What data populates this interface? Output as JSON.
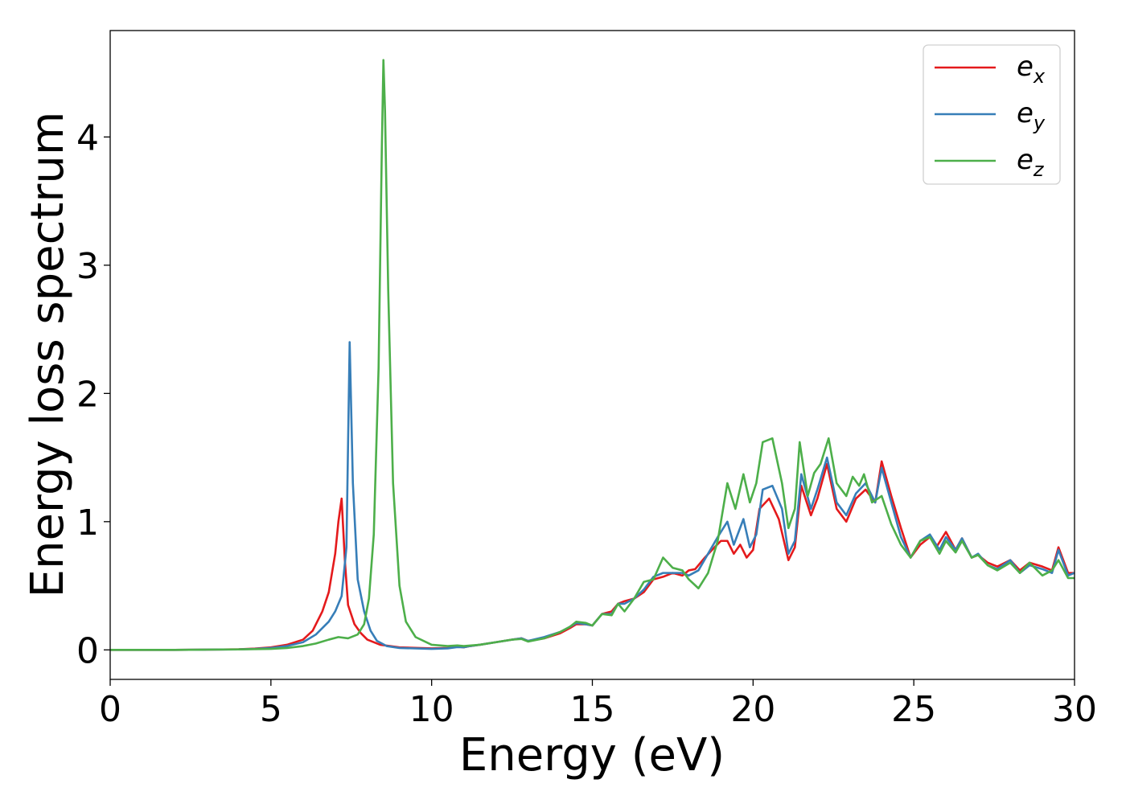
{
  "chart_data": {
    "type": "line",
    "xlabel": "Energy (eV)",
    "ylabel": "Energy loss spectrum",
    "xlim": [
      0,
      30
    ],
    "ylim": [
      -0.23,
      4.83
    ],
    "xticks": [
      0,
      5,
      10,
      15,
      20,
      25,
      30
    ],
    "yticks": [
      0,
      1,
      2,
      3,
      4
    ],
    "grid": false,
    "legend_position": "top-right",
    "series": [
      {
        "name": "e_x",
        "label_base": "e",
        "label_sub": "x",
        "color": "#e41a1c",
        "points": [
          [
            0,
            0
          ],
          [
            2,
            0
          ],
          [
            3,
            0.002
          ],
          [
            4,
            0.005
          ],
          [
            4.5,
            0.01
          ],
          [
            5,
            0.02
          ],
          [
            5.5,
            0.04
          ],
          [
            6,
            0.08
          ],
          [
            6.3,
            0.15
          ],
          [
            6.6,
            0.3
          ],
          [
            6.8,
            0.45
          ],
          [
            7,
            0.75
          ],
          [
            7.1,
            1.0
          ],
          [
            7.2,
            1.18
          ],
          [
            7.3,
            0.7
          ],
          [
            7.4,
            0.35
          ],
          [
            7.6,
            0.2
          ],
          [
            7.8,
            0.13
          ],
          [
            8,
            0.08
          ],
          [
            8.4,
            0.04
          ],
          [
            9,
            0.02
          ],
          [
            10,
            0.012
          ],
          [
            10.5,
            0.015
          ],
          [
            10.8,
            0.025
          ],
          [
            11,
            0.02
          ],
          [
            11.2,
            0.03
          ],
          [
            11.5,
            0.04
          ],
          [
            12,
            0.06
          ],
          [
            12.5,
            0.08
          ],
          [
            12.8,
            0.09
          ],
          [
            13,
            0.07
          ],
          [
            13.5,
            0.09
          ],
          [
            14,
            0.13
          ],
          [
            14.3,
            0.17
          ],
          [
            14.5,
            0.2
          ],
          [
            14.8,
            0.2
          ],
          [
            15,
            0.19
          ],
          [
            15.3,
            0.28
          ],
          [
            15.6,
            0.3
          ],
          [
            15.8,
            0.36
          ],
          [
            16,
            0.38
          ],
          [
            16.3,
            0.4
          ],
          [
            16.6,
            0.45
          ],
          [
            16.9,
            0.55
          ],
          [
            17.2,
            0.57
          ],
          [
            17.5,
            0.6
          ],
          [
            17.8,
            0.58
          ],
          [
            18,
            0.62
          ],
          [
            18.2,
            0.63
          ],
          [
            18.5,
            0.72
          ],
          [
            18.8,
            0.8
          ],
          [
            19,
            0.85
          ],
          [
            19.2,
            0.85
          ],
          [
            19.4,
            0.75
          ],
          [
            19.6,
            0.82
          ],
          [
            19.8,
            0.72
          ],
          [
            20,
            0.78
          ],
          [
            20.2,
            1.1
          ],
          [
            20.5,
            1.18
          ],
          [
            20.8,
            1.02
          ],
          [
            21.1,
            0.7
          ],
          [
            21.3,
            0.8
          ],
          [
            21.5,
            1.28
          ],
          [
            21.8,
            1.05
          ],
          [
            22,
            1.18
          ],
          [
            22.3,
            1.45
          ],
          [
            22.6,
            1.1
          ],
          [
            22.9,
            1.0
          ],
          [
            23.2,
            1.18
          ],
          [
            23.5,
            1.25
          ],
          [
            23.8,
            1.15
          ],
          [
            24,
            1.47
          ],
          [
            24.3,
            1.2
          ],
          [
            24.6,
            0.95
          ],
          [
            24.9,
            0.72
          ],
          [
            25.2,
            0.82
          ],
          [
            25.5,
            0.88
          ],
          [
            25.7,
            0.8
          ],
          [
            26,
            0.92
          ],
          [
            26.3,
            0.78
          ],
          [
            26.5,
            0.87
          ],
          [
            26.8,
            0.72
          ],
          [
            27,
            0.74
          ],
          [
            27.3,
            0.68
          ],
          [
            27.6,
            0.65
          ],
          [
            28,
            0.7
          ],
          [
            28.3,
            0.62
          ],
          [
            28.6,
            0.68
          ],
          [
            29,
            0.65
          ],
          [
            29.3,
            0.62
          ],
          [
            29.5,
            0.8
          ],
          [
            29.8,
            0.6
          ],
          [
            30,
            0.6
          ]
        ]
      },
      {
        "name": "e_y",
        "label_base": "e",
        "label_sub": "y",
        "color": "#377eb8",
        "points": [
          [
            0,
            0
          ],
          [
            2,
            0
          ],
          [
            3,
            0.002
          ],
          [
            4,
            0.004
          ],
          [
            4.5,
            0.008
          ],
          [
            5,
            0.015
          ],
          [
            5.5,
            0.03
          ],
          [
            6,
            0.06
          ],
          [
            6.4,
            0.12
          ],
          [
            6.8,
            0.22
          ],
          [
            7,
            0.3
          ],
          [
            7.2,
            0.42
          ],
          [
            7.35,
            0.8
          ],
          [
            7.45,
            2.4
          ],
          [
            7.55,
            1.3
          ],
          [
            7.7,
            0.55
          ],
          [
            7.9,
            0.3
          ],
          [
            8.1,
            0.15
          ],
          [
            8.3,
            0.07
          ],
          [
            8.6,
            0.03
          ],
          [
            9,
            0.015
          ],
          [
            10,
            0.008
          ],
          [
            10.5,
            0.012
          ],
          [
            10.8,
            0.022
          ],
          [
            11,
            0.02
          ],
          [
            11.2,
            0.03
          ],
          [
            11.5,
            0.04
          ],
          [
            12,
            0.06
          ],
          [
            12.5,
            0.08
          ],
          [
            12.8,
            0.09
          ],
          [
            13,
            0.07
          ],
          [
            13.5,
            0.1
          ],
          [
            14,
            0.14
          ],
          [
            14.3,
            0.18
          ],
          [
            14.5,
            0.21
          ],
          [
            14.8,
            0.2
          ],
          [
            15,
            0.19
          ],
          [
            15.3,
            0.28
          ],
          [
            15.6,
            0.28
          ],
          [
            15.8,
            0.36
          ],
          [
            16,
            0.36
          ],
          [
            16.3,
            0.4
          ],
          [
            16.6,
            0.47
          ],
          [
            16.9,
            0.57
          ],
          [
            17.2,
            0.6
          ],
          [
            17.5,
            0.6
          ],
          [
            17.8,
            0.6
          ],
          [
            18,
            0.58
          ],
          [
            18.3,
            0.62
          ],
          [
            18.6,
            0.75
          ],
          [
            18.9,
            0.88
          ],
          [
            19.2,
            1.0
          ],
          [
            19.4,
            0.82
          ],
          [
            19.7,
            1.02
          ],
          [
            19.9,
            0.8
          ],
          [
            20.1,
            0.9
          ],
          [
            20.3,
            1.25
          ],
          [
            20.6,
            1.28
          ],
          [
            20.9,
            1.1
          ],
          [
            21.1,
            0.75
          ],
          [
            21.3,
            0.85
          ],
          [
            21.5,
            1.37
          ],
          [
            21.8,
            1.1
          ],
          [
            22,
            1.25
          ],
          [
            22.3,
            1.5
          ],
          [
            22.6,
            1.15
          ],
          [
            22.9,
            1.05
          ],
          [
            23.2,
            1.22
          ],
          [
            23.5,
            1.3
          ],
          [
            23.8,
            1.15
          ],
          [
            24,
            1.42
          ],
          [
            24.3,
            1.15
          ],
          [
            24.6,
            0.88
          ],
          [
            24.9,
            0.72
          ],
          [
            25.2,
            0.85
          ],
          [
            25.5,
            0.9
          ],
          [
            25.8,
            0.78
          ],
          [
            26,
            0.88
          ],
          [
            26.3,
            0.78
          ],
          [
            26.5,
            0.87
          ],
          [
            26.8,
            0.72
          ],
          [
            27,
            0.75
          ],
          [
            27.3,
            0.66
          ],
          [
            27.6,
            0.63
          ],
          [
            28,
            0.7
          ],
          [
            28.3,
            0.6
          ],
          [
            28.6,
            0.66
          ],
          [
            29,
            0.63
          ],
          [
            29.3,
            0.6
          ],
          [
            29.5,
            0.78
          ],
          [
            29.8,
            0.58
          ],
          [
            30,
            0.6
          ]
        ]
      },
      {
        "name": "e_z",
        "label_base": "e",
        "label_sub": "z",
        "color": "#4daf4a",
        "points": [
          [
            0,
            0
          ],
          [
            2,
            0
          ],
          [
            3,
            0.002
          ],
          [
            4,
            0.004
          ],
          [
            5,
            0.008
          ],
          [
            5.5,
            0.015
          ],
          [
            6,
            0.03
          ],
          [
            6.4,
            0.05
          ],
          [
            6.8,
            0.08
          ],
          [
            7.1,
            0.1
          ],
          [
            7.4,
            0.09
          ],
          [
            7.7,
            0.12
          ],
          [
            7.9,
            0.2
          ],
          [
            8.05,
            0.4
          ],
          [
            8.2,
            0.9
          ],
          [
            8.35,
            2.2
          ],
          [
            8.45,
            3.9
          ],
          [
            8.5,
            4.6
          ],
          [
            8.55,
            4.2
          ],
          [
            8.65,
            2.8
          ],
          [
            8.8,
            1.3
          ],
          [
            9,
            0.5
          ],
          [
            9.2,
            0.22
          ],
          [
            9.5,
            0.1
          ],
          [
            10,
            0.04
          ],
          [
            10.5,
            0.03
          ],
          [
            10.8,
            0.035
          ],
          [
            11,
            0.03
          ],
          [
            11.5,
            0.04
          ],
          [
            12,
            0.06
          ],
          [
            12.5,
            0.08
          ],
          [
            12.8,
            0.085
          ],
          [
            13,
            0.065
          ],
          [
            13.5,
            0.09
          ],
          [
            14,
            0.14
          ],
          [
            14.3,
            0.18
          ],
          [
            14.5,
            0.22
          ],
          [
            14.8,
            0.21
          ],
          [
            15,
            0.19
          ],
          [
            15.3,
            0.28
          ],
          [
            15.6,
            0.27
          ],
          [
            15.8,
            0.36
          ],
          [
            16,
            0.3
          ],
          [
            16.3,
            0.4
          ],
          [
            16.6,
            0.53
          ],
          [
            16.9,
            0.55
          ],
          [
            17.2,
            0.72
          ],
          [
            17.5,
            0.64
          ],
          [
            17.8,
            0.62
          ],
          [
            18,
            0.55
          ],
          [
            18.3,
            0.48
          ],
          [
            18.6,
            0.6
          ],
          [
            18.9,
            0.85
          ],
          [
            19.2,
            1.3
          ],
          [
            19.45,
            1.1
          ],
          [
            19.7,
            1.37
          ],
          [
            19.9,
            1.15
          ],
          [
            20.1,
            1.3
          ],
          [
            20.3,
            1.62
          ],
          [
            20.6,
            1.65
          ],
          [
            20.9,
            1.3
          ],
          [
            21.1,
            0.95
          ],
          [
            21.3,
            1.1
          ],
          [
            21.45,
            1.62
          ],
          [
            21.7,
            1.2
          ],
          [
            21.9,
            1.38
          ],
          [
            22.1,
            1.45
          ],
          [
            22.35,
            1.65
          ],
          [
            22.6,
            1.3
          ],
          [
            22.9,
            1.2
          ],
          [
            23.1,
            1.35
          ],
          [
            23.3,
            1.28
          ],
          [
            23.45,
            1.37
          ],
          [
            23.7,
            1.15
          ],
          [
            24,
            1.2
          ],
          [
            24.3,
            0.98
          ],
          [
            24.6,
            0.82
          ],
          [
            24.9,
            0.72
          ],
          [
            25.2,
            0.85
          ],
          [
            25.5,
            0.88
          ],
          [
            25.8,
            0.75
          ],
          [
            26,
            0.85
          ],
          [
            26.3,
            0.76
          ],
          [
            26.5,
            0.85
          ],
          [
            26.8,
            0.72
          ],
          [
            27,
            0.74
          ],
          [
            27.3,
            0.66
          ],
          [
            27.6,
            0.62
          ],
          [
            28,
            0.68
          ],
          [
            28.3,
            0.6
          ],
          [
            28.6,
            0.68
          ],
          [
            29,
            0.58
          ],
          [
            29.3,
            0.62
          ],
          [
            29.5,
            0.7
          ],
          [
            29.8,
            0.56
          ],
          [
            30,
            0.56
          ]
        ]
      }
    ]
  }
}
